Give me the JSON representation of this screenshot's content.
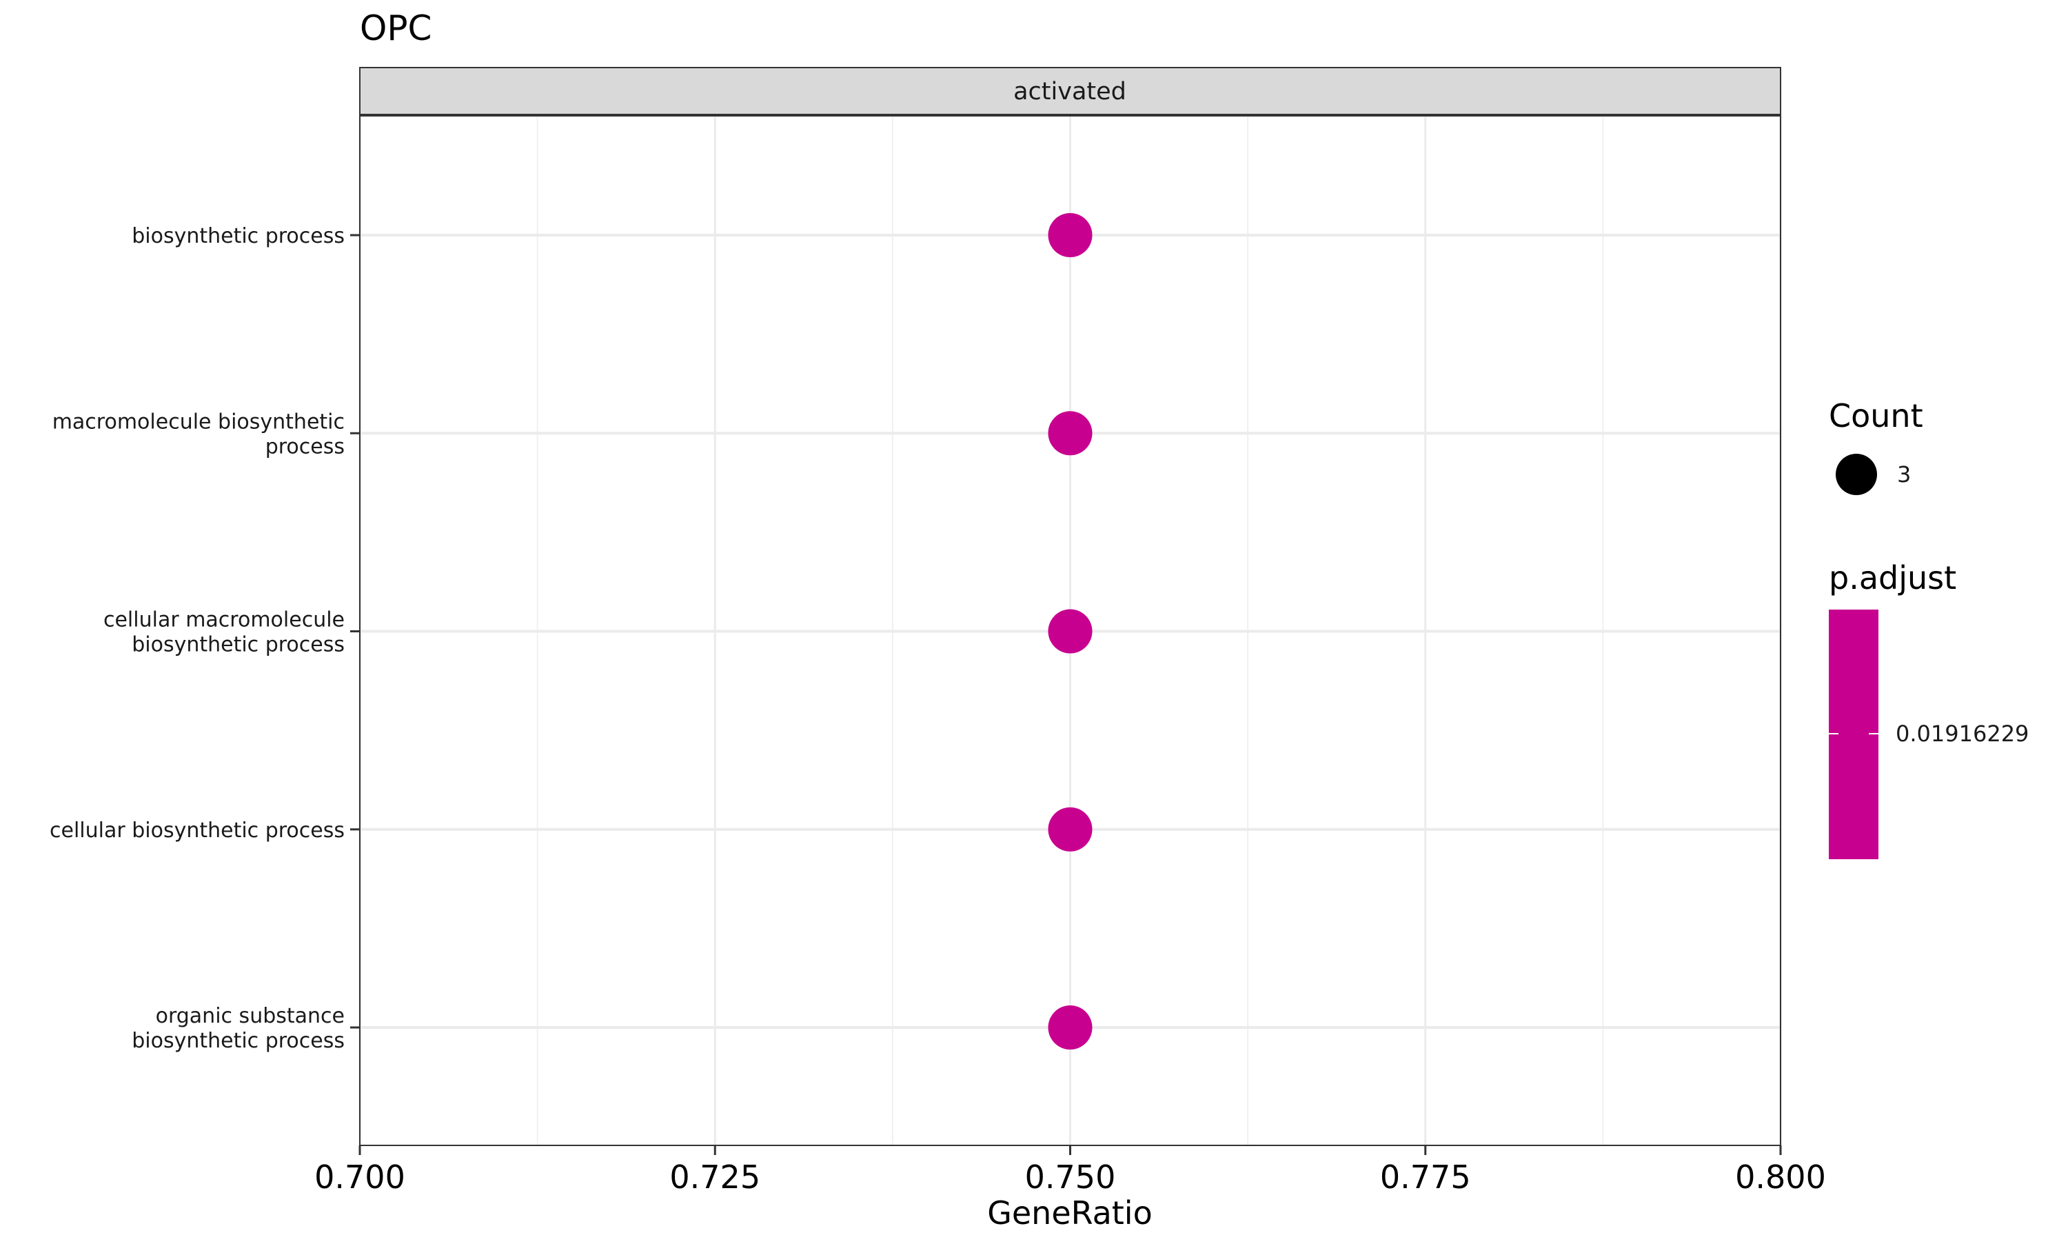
{
  "chart_data": {
    "type": "scatter",
    "title": "OPC",
    "facet": "activated",
    "xlabel": "GeneRatio",
    "ylabel": "",
    "xlim": [
      0.7,
      0.8
    ],
    "x_ticks": [
      "0.700",
      "0.725",
      "0.750",
      "0.775",
      "0.800"
    ],
    "x_tick_values": [
      0.7,
      0.725,
      0.75,
      0.775,
      0.8
    ],
    "grid": true,
    "point_color": "#C8008F",
    "categories": [
      [
        "biosynthetic process"
      ],
      [
        "macromolecule biosynthetic",
        "process"
      ],
      [
        "cellular macromolecule",
        "biosynthetic process"
      ],
      [
        "cellular biosynthetic process"
      ],
      [
        "organic substance",
        "biosynthetic process"
      ]
    ],
    "points": [
      {
        "x": 0.75,
        "count": 3,
        "p_adjust": 0.01916229
      },
      {
        "x": 0.75,
        "count": 3,
        "p_adjust": 0.01916229
      },
      {
        "x": 0.75,
        "count": 3,
        "p_adjust": 0.01916229
      },
      {
        "x": 0.75,
        "count": 3,
        "p_adjust": 0.01916229
      },
      {
        "x": 0.75,
        "count": 3,
        "p_adjust": 0.01916229
      }
    ],
    "legend": {
      "placement": "right",
      "size_title": "Count",
      "size_label": "3",
      "color_title": "p.adjust",
      "color_label": "0.01916229",
      "color": "#C8008F"
    }
  }
}
